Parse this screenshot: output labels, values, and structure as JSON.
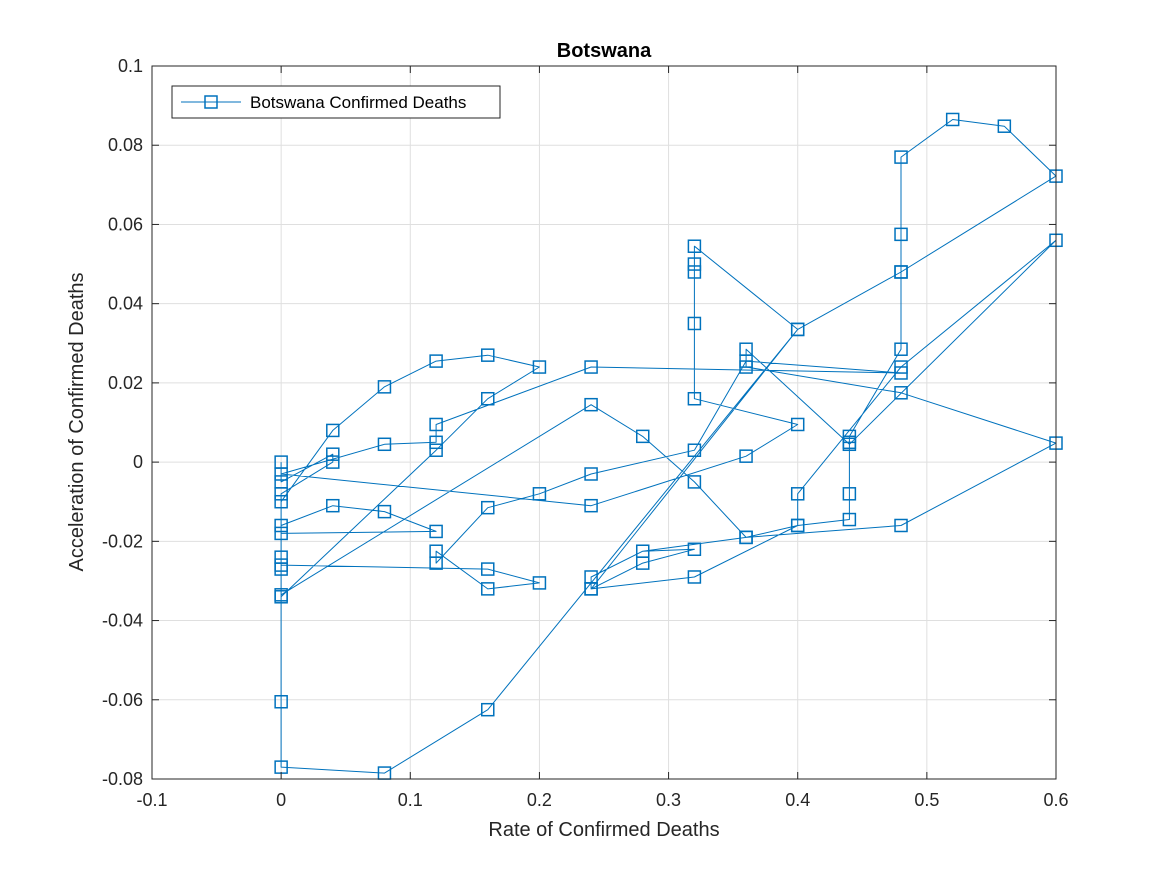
{
  "chart_data": {
    "type": "line",
    "title": "Botswana",
    "xlabel": "Rate of Confirmed Deaths",
    "ylabel": "Acceleration of Confirmed Deaths",
    "xlim": [
      -0.1,
      0.6
    ],
    "ylim": [
      -0.08,
      0.1
    ],
    "xticks": [
      -0.1,
      0,
      0.1,
      0.2,
      0.3,
      0.4,
      0.5,
      0.6
    ],
    "xtick_labels": [
      "-0.1",
      "0",
      "0.1",
      "0.2",
      "0.3",
      "0.4",
      "0.5",
      "0.6"
    ],
    "yticks": [
      -0.08,
      -0.06,
      -0.04,
      -0.02,
      0,
      0.02,
      0.04,
      0.06,
      0.08,
      0.1
    ],
    "ytick_labels": [
      "-0.08",
      "-0.06",
      "-0.04",
      "-0.02",
      "0",
      "0.02",
      "0.04",
      "0.06",
      "0.08",
      "0.1"
    ],
    "grid": true,
    "legend_position": "top-left",
    "series": [
      {
        "name": "Botswana Confirmed Deaths",
        "color": "#0072BD",
        "marker": "square",
        "points": [
          [
            0,
            0
          ],
          [
            0,
            -0.005
          ],
          [
            0.04,
            0.002
          ],
          [
            0.04,
            0
          ],
          [
            0,
            -0.008
          ],
          [
            0,
            -0.018
          ],
          [
            0.12,
            -0.0175
          ],
          [
            0.08,
            -0.0125
          ],
          [
            0.04,
            -0.011
          ],
          [
            0,
            -0.016
          ],
          [
            0,
            -0.024
          ],
          [
            0,
            -0.027
          ],
          [
            0,
            -0.034
          ],
          [
            0.12,
            0.003
          ],
          [
            0.16,
            0.016
          ],
          [
            0.2,
            0.024
          ],
          [
            0.16,
            0.027
          ],
          [
            0.12,
            0.0255
          ],
          [
            0.08,
            0.019
          ],
          [
            0.04,
            0.008
          ],
          [
            0,
            -0.01
          ],
          [
            0,
            -0.026
          ],
          [
            0.16,
            -0.027
          ],
          [
            0.2,
            -0.0305
          ],
          [
            0.16,
            -0.032
          ],
          [
            0.12,
            -0.0225
          ],
          [
            0.12,
            -0.0255
          ],
          [
            0.16,
            -0.0115
          ],
          [
            0.2,
            -0.008
          ],
          [
            0.24,
            -0.003
          ],
          [
            0.32,
            0.003
          ],
          [
            0.36,
            0.0255
          ],
          [
            0.48,
            0.0225
          ],
          [
            0.24,
            0.024
          ],
          [
            0.12,
            0.0095
          ],
          [
            0.12,
            0.005
          ],
          [
            0.08,
            0.0045
          ],
          [
            0,
            -0.003
          ],
          [
            0.24,
            -0.011
          ],
          [
            0.36,
            0.0015
          ],
          [
            0.4,
            0.0095
          ],
          [
            0.32,
            0.016
          ],
          [
            0.32,
            0.035
          ],
          [
            0.32,
            0.048
          ],
          [
            0.32,
            0.05
          ],
          [
            0.32,
            0.0545
          ],
          [
            0.4,
            0.0335
          ],
          [
            0.16,
            -0.0625
          ],
          [
            0.08,
            -0.0785
          ],
          [
            0,
            -0.077
          ],
          [
            0,
            -0.0605
          ],
          [
            0,
            -0.0335
          ],
          [
            0.24,
            0.0145
          ],
          [
            0.28,
            0.0065
          ],
          [
            0.32,
            -0.005
          ],
          [
            0.36,
            -0.019
          ],
          [
            0.4,
            -0.016
          ],
          [
            0.44,
            -0.0145
          ],
          [
            0.44,
            -0.008
          ],
          [
            0.44,
            0.005
          ],
          [
            0.44,
            0.0065
          ],
          [
            0.48,
            0.0285
          ],
          [
            0.48,
            0.048
          ],
          [
            0.48,
            0.0575
          ],
          [
            0.48,
            0.077
          ],
          [
            0.52,
            0.0865
          ],
          [
            0.56,
            0.0848
          ],
          [
            0.6,
            0.0722
          ],
          [
            0.48,
            0.048
          ],
          [
            0.4,
            0.0335
          ],
          [
            0.24,
            -0.032
          ],
          [
            0.24,
            -0.029
          ],
          [
            0.28,
            -0.0225
          ],
          [
            0.32,
            -0.022
          ],
          [
            0.28,
            -0.0255
          ],
          [
            0.24,
            -0.032
          ],
          [
            0.32,
            -0.029
          ],
          [
            0.4,
            -0.016
          ],
          [
            0.4,
            -0.008
          ],
          [
            0.48,
            0.024
          ],
          [
            0.6,
            0.056
          ],
          [
            0.44,
            0.0045
          ],
          [
            0.36,
            0.0285
          ],
          [
            0.36,
            0.024
          ],
          [
            0.48,
            0.0175
          ],
          [
            0.6,
            0.0048
          ],
          [
            0.48,
            -0.016
          ],
          [
            0.36,
            -0.019
          ],
          [
            0.28,
            -0.0225
          ]
        ]
      }
    ]
  }
}
